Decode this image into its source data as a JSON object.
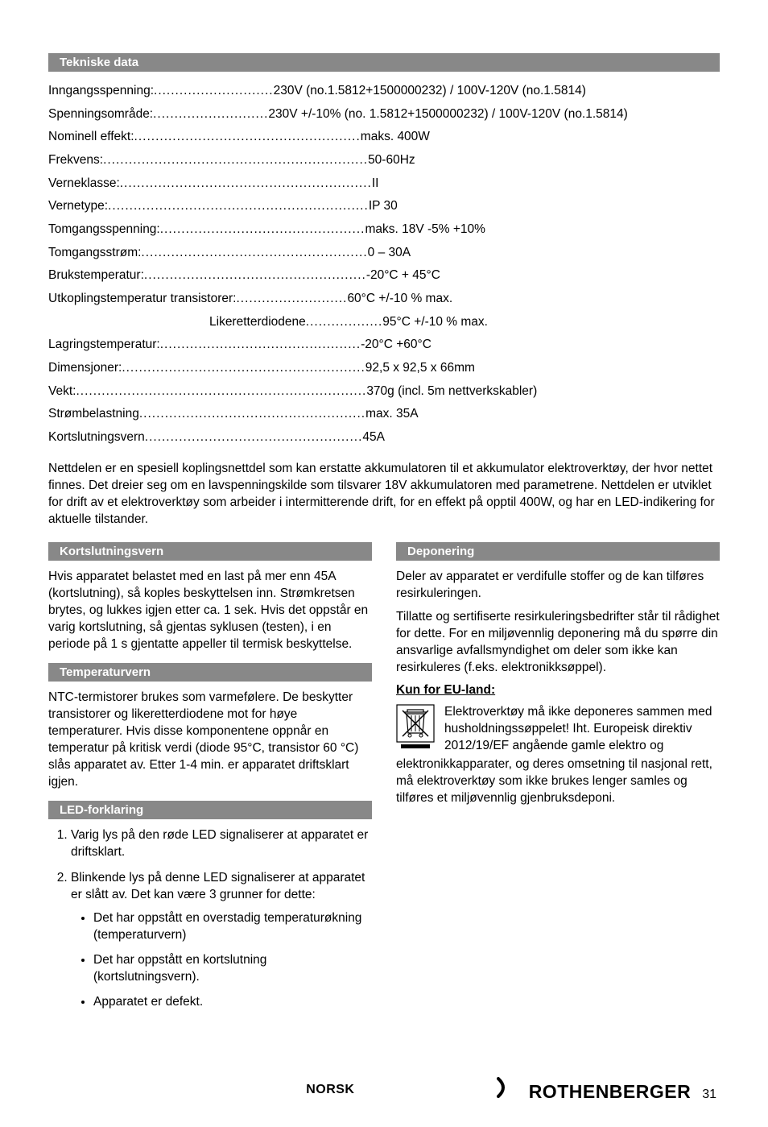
{
  "sections": {
    "tekniske": "Tekniske data",
    "kortslutning": "Kortslutningsvern",
    "temperatur": "Temperaturvern",
    "led": "LED-forklaring",
    "deponering": "Deponering"
  },
  "specs": [
    {
      "label": "Inngangsspenning:",
      "dots": "............................",
      "value": "230V (no.1.5812+1500000232) / 100V-120V (no.1.5814)"
    },
    {
      "label": "Spenningsområde: ",
      "dots": "...........................",
      "value": "230V +/-10% (no. 1.5812+1500000232) / 100V-120V (no.1.5814)"
    },
    {
      "label": "Nominell effekt: ",
      "dots": ".....................................................",
      "value": "maks. 400W"
    },
    {
      "label": "Frekvens: ",
      "dots": "..............................................................",
      "value": "50-60Hz"
    },
    {
      "label": "Verneklasse:",
      "dots": "...........................................................",
      "value": "II"
    },
    {
      "label": "Vernetype:",
      "dots": ".............................................................",
      "value": "IP 30"
    },
    {
      "label": "Tomgangsspenning:",
      "dots": "................................................",
      "value": "maks. 18V -5% +10%"
    },
    {
      "label": "Tomgangsstrøm:",
      "dots": ".....................................................",
      "value": "0 – 30A"
    },
    {
      "label": "Brukstemperatur: ",
      "dots": "....................................................",
      "value": "-20°C + 45°C"
    },
    {
      "label": "Utkoplingstemperatur transistorer: ",
      "dots": "..........................",
      "value": "60°C +/-10 % max."
    },
    {
      "label": "Likeretterdiodene",
      "dots": "..................",
      "value": "95°C +/-10 % max.",
      "indent": 200
    },
    {
      "label": "Lagringstemperatur:",
      "dots": "...............................................",
      "value": "-20°C +60°C"
    },
    {
      "label": "Dimensjoner: ",
      "dots": ".........................................................",
      "value": "92,5 x 92,5 x 66mm"
    },
    {
      "label": "Vekt: ",
      "dots": "....................................................................",
      "value": "370g (incl. 5m nettverkskabler)"
    },
    {
      "label": "Strømbelastning",
      "dots": ".....................................................",
      "value": "max. 35A"
    },
    {
      "label": "Kortslutningsvern",
      "dots": "...................................................",
      "value": "45A"
    }
  ],
  "intro_para": "Nettdelen er en spesiell koplingsnettdel som kan erstatte akkumulatoren til et akkumulator elektroverktøy, der hvor nettet finnes. Det dreier seg om en lavspenningskilde som tilsvarer 18V akkumulatoren med parametrene. Nettdelen er utviklet for drift av et elektroverktøy som arbeider i intermitterende drift, for en effekt på opptil 400W, og har en LED-indikering for aktuelle tilstander.",
  "kortslutning_para": "Hvis apparatet belastet med en last på mer enn 45A (kortslutning), så koples beskyttelsen inn. Strømkretsen brytes, og lukkes igjen etter ca. 1 sek. Hvis det oppstår en varig kortslutning, så gjentas syklusen (testen), i en periode på 1 s gjentatte appeller til termisk beskyttelse.",
  "temperatur_para": "NTC-termistorer brukes som varmefølere. De beskytter transistorer og likeretterdiodene mot for høye temperaturer. Hvis disse komponentene oppnår en temperatur på kritisk verdi (diode 95°C, transistor 60 °C) slås apparatet av. Etter 1-4 min. er apparatet driftsklart igjen.",
  "led_list": {
    "item1": "Varig lys på den røde LED signaliserer at apparatet er driftsklart.",
    "item2_intro": "Blinkende lys på denne LED signaliserer at apparatet er slått av. Det kan være 3 grunner for dette:",
    "item2_b1": "Det har oppstått en overstadig temperaturøkning (temperaturvern)",
    "item2_b2": "Det har oppstått en kortslutning (kortslutningsvern).",
    "item2_b3": "Apparatet er defekt."
  },
  "deponering": {
    "p1": "Deler av apparatet er verdifulle stoffer og de kan tilføres resirkuleringen.",
    "p2": "Tillatte og sertifiserte resirkuleringsbedrifter står til rådighet for dette. For en miljøvennlig deponering må du spørre din ansvarlige avfallsmyndighet om deler som ikke kan resirkuleres (f.eks. elektronikksøppel).",
    "eu_title": "Kun for EU-land:",
    "eu_icon_text": "Elektroverktøy må ikke deponeres sammen med husholdningssøppelet! Iht. Europeisk direktiv 2012/19/EF angående gamle elektro og",
    "eu_rest": "elektronikkapparater, og deres omsetning til nasjonal rett, må elektroverktøy som ikke brukes lenger samles og tilføres et miljøvennlig gjenbruksdeponi."
  },
  "footer": {
    "lang": "NORSK",
    "brand": "ROTHENBERGER",
    "page": "31"
  },
  "colors": {
    "section_bg": "#888888",
    "section_text": "#ffffff",
    "body_text": "#000000"
  }
}
